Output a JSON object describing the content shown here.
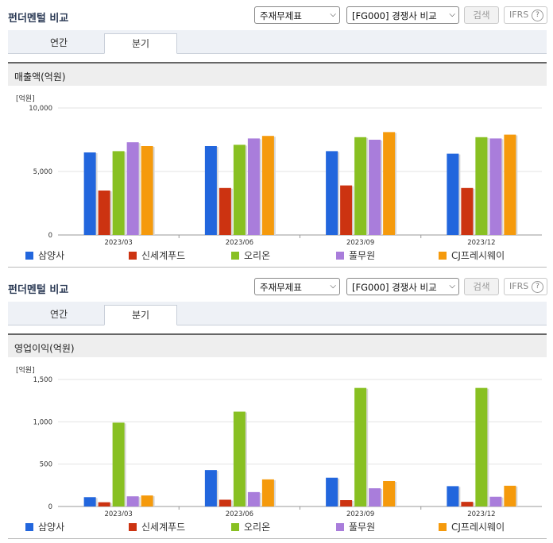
{
  "panels": [
    {
      "title": "펀더멘털 비교",
      "select1": "주재무제표",
      "select2": "[FG000] 경쟁사 비교",
      "search_label": "검색",
      "ifrs_label": "IFRS",
      "ifrs_help": "?",
      "tabs": [
        {
          "label": "연간"
        },
        {
          "label": "분기"
        }
      ],
      "active_tab": "분기",
      "subtitle": "매출액(억원)",
      "unit": "[억원]"
    },
    {
      "title": "펀더멘털 비교",
      "select1": "주재무제표",
      "select2": "[FG000] 경쟁사 비교",
      "search_label": "검색",
      "ifrs_label": "IFRS",
      "ifrs_help": "?",
      "tabs": [
        {
          "label": "연간"
        },
        {
          "label": "분기"
        }
      ],
      "active_tab": "분기",
      "subtitle": "영업이익(억원)",
      "unit": "[억원]"
    }
  ],
  "chart_data": [
    {
      "type": "bar",
      "title": "매출액(억원)",
      "ylabel": "[억원]",
      "ylim": [
        0,
        10000
      ],
      "yticks": [
        0,
        5000,
        10000
      ],
      "ytick_labels": [
        "0",
        "5,000",
        "10,000"
      ],
      "grid": true,
      "legend_position": "bottom",
      "categories": [
        "2023/03",
        "2023/06",
        "2023/09",
        "2023/12"
      ],
      "series": [
        {
          "name": "삼양사",
          "color": "#2266dd",
          "values": [
            6500,
            7000,
            6600,
            6400
          ]
        },
        {
          "name": "신세계푸드",
          "color": "#cc3311",
          "values": [
            3500,
            3700,
            3900,
            3700
          ]
        },
        {
          "name": "오리온",
          "color": "#88c022",
          "values": [
            6600,
            7100,
            7700,
            7700
          ]
        },
        {
          "name": "풀무원",
          "color": "#a97ddb",
          "values": [
            7300,
            7600,
            7500,
            7600
          ]
        },
        {
          "name": "CJ프레시웨이",
          "color": "#f59a0c",
          "values": [
            7000,
            7800,
            8100,
            7900
          ]
        }
      ]
    },
    {
      "type": "bar",
      "title": "영업이익(억원)",
      "ylabel": "[억원]",
      "ylim": [
        0,
        1500
      ],
      "yticks": [
        0,
        500,
        1000,
        1500
      ],
      "ytick_labels": [
        "0",
        "500",
        "1,000",
        "1,500"
      ],
      "grid": true,
      "legend_position": "bottom",
      "categories": [
        "2023/03",
        "2023/06",
        "2023/09",
        "2023/12"
      ],
      "series": [
        {
          "name": "삼양사",
          "color": "#2266dd",
          "values": [
            110,
            430,
            340,
            240
          ]
        },
        {
          "name": "신세계푸드",
          "color": "#cc3311",
          "values": [
            50,
            80,
            75,
            55
          ]
        },
        {
          "name": "오리온",
          "color": "#88c022",
          "values": [
            990,
            1120,
            1400,
            1400
          ]
        },
        {
          "name": "풀무원",
          "color": "#a97ddb",
          "values": [
            120,
            170,
            215,
            115
          ]
        },
        {
          "name": "CJ프레시웨이",
          "color": "#f59a0c",
          "values": [
            130,
            320,
            300,
            245
          ]
        }
      ]
    }
  ]
}
